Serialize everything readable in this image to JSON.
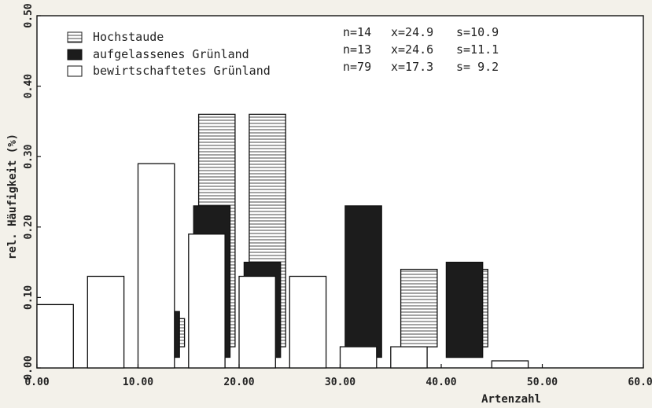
{
  "chart_data": {
    "type": "bar",
    "title": "",
    "xlabel": "Artenzahl",
    "ylabel": "rel. Häufigkeit (%)",
    "xlim": [
      0,
      60
    ],
    "ylim": [
      0,
      0.5
    ],
    "x_ticks": [
      "0.00",
      "10.00",
      "20.00",
      "30.00",
      "40.00",
      "50.00",
      "60.00"
    ],
    "y_ticks": [
      "0.00",
      "0.10",
      "0.20",
      "0.30",
      "0.40",
      "0.50"
    ],
    "bin_width": 5,
    "bins": [
      "0-5",
      "5-10",
      "10-15",
      "15-20",
      "20-25",
      "25-30",
      "30-35",
      "35-40",
      "40-45",
      "45-50"
    ],
    "series": [
      {
        "name": "Hochstaude",
        "fill": "hatched",
        "legend_stats": [
          "n=14",
          "x=24.9",
          "s=10.9"
        ],
        "values": [
          0,
          0,
          0.07,
          0.36,
          0.36,
          0,
          0,
          0.14,
          0.14,
          0
        ]
      },
      {
        "name": "aufgelassenes Grünland",
        "fill": "black",
        "legend_stats": [
          "n=13",
          "x=24.6",
          "s=11.1"
        ],
        "values": [
          0,
          0,
          0.08,
          0.23,
          0.15,
          0,
          0.23,
          0,
          0.15,
          0
        ]
      },
      {
        "name": "bewirtschaftetes Grünland",
        "fill": "white",
        "legend_stats": [
          "n=79",
          "x=17.3",
          "s= 9.2"
        ],
        "values": [
          0.09,
          0.13,
          0.29,
          0.19,
          0.13,
          0.13,
          0.03,
          0.03,
          0,
          0.01
        ]
      }
    ],
    "grid": false,
    "legend_position": "top-left"
  }
}
